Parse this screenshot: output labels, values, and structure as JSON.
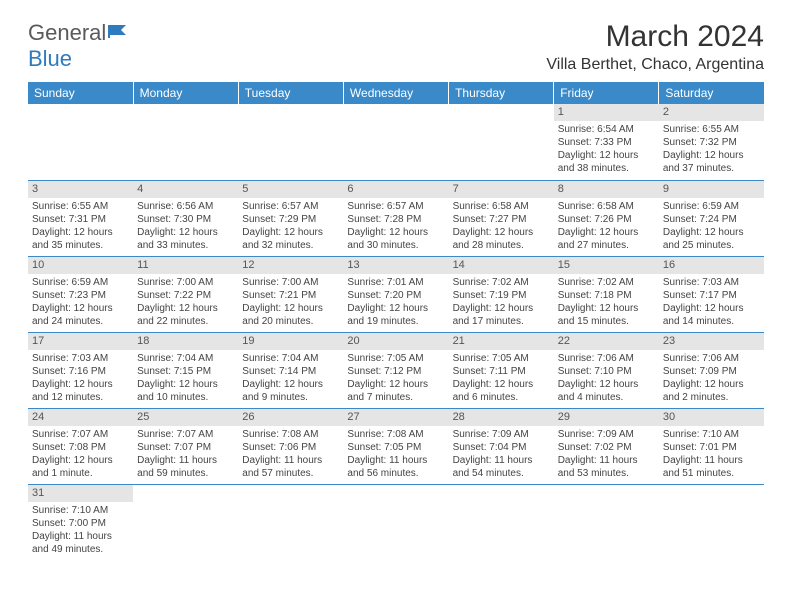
{
  "logo": {
    "text1": "General",
    "text2": "Blue",
    "mark_color": "#2f7bbf"
  },
  "header": {
    "month_title": "March 2024",
    "location": "Villa Berthet, Chaco, Argentina"
  },
  "colors": {
    "header_bg": "#3a89c9",
    "header_fg": "#ffffff",
    "daynum_bg": "#e5e5e5",
    "rule": "#3a89c9",
    "text": "#333333",
    "muted": "#555555"
  },
  "weekdays": [
    "Sunday",
    "Monday",
    "Tuesday",
    "Wednesday",
    "Thursday",
    "Friday",
    "Saturday"
  ],
  "weeks": [
    [
      null,
      null,
      null,
      null,
      null,
      {
        "n": "1",
        "sr": "6:54 AM",
        "ss": "7:33 PM",
        "dl": "12 hours and 38 minutes."
      },
      {
        "n": "2",
        "sr": "6:55 AM",
        "ss": "7:32 PM",
        "dl": "12 hours and 37 minutes."
      }
    ],
    [
      {
        "n": "3",
        "sr": "6:55 AM",
        "ss": "7:31 PM",
        "dl": "12 hours and 35 minutes."
      },
      {
        "n": "4",
        "sr": "6:56 AM",
        "ss": "7:30 PM",
        "dl": "12 hours and 33 minutes."
      },
      {
        "n": "5",
        "sr": "6:57 AM",
        "ss": "7:29 PM",
        "dl": "12 hours and 32 minutes."
      },
      {
        "n": "6",
        "sr": "6:57 AM",
        "ss": "7:28 PM",
        "dl": "12 hours and 30 minutes."
      },
      {
        "n": "7",
        "sr": "6:58 AM",
        "ss": "7:27 PM",
        "dl": "12 hours and 28 minutes."
      },
      {
        "n": "8",
        "sr": "6:58 AM",
        "ss": "7:26 PM",
        "dl": "12 hours and 27 minutes."
      },
      {
        "n": "9",
        "sr": "6:59 AM",
        "ss": "7:24 PM",
        "dl": "12 hours and 25 minutes."
      }
    ],
    [
      {
        "n": "10",
        "sr": "6:59 AM",
        "ss": "7:23 PM",
        "dl": "12 hours and 24 minutes."
      },
      {
        "n": "11",
        "sr": "7:00 AM",
        "ss": "7:22 PM",
        "dl": "12 hours and 22 minutes."
      },
      {
        "n": "12",
        "sr": "7:00 AM",
        "ss": "7:21 PM",
        "dl": "12 hours and 20 minutes."
      },
      {
        "n": "13",
        "sr": "7:01 AM",
        "ss": "7:20 PM",
        "dl": "12 hours and 19 minutes."
      },
      {
        "n": "14",
        "sr": "7:02 AM",
        "ss": "7:19 PM",
        "dl": "12 hours and 17 minutes."
      },
      {
        "n": "15",
        "sr": "7:02 AM",
        "ss": "7:18 PM",
        "dl": "12 hours and 15 minutes."
      },
      {
        "n": "16",
        "sr": "7:03 AM",
        "ss": "7:17 PM",
        "dl": "12 hours and 14 minutes."
      }
    ],
    [
      {
        "n": "17",
        "sr": "7:03 AM",
        "ss": "7:16 PM",
        "dl": "12 hours and 12 minutes."
      },
      {
        "n": "18",
        "sr": "7:04 AM",
        "ss": "7:15 PM",
        "dl": "12 hours and 10 minutes."
      },
      {
        "n": "19",
        "sr": "7:04 AM",
        "ss": "7:14 PM",
        "dl": "12 hours and 9 minutes."
      },
      {
        "n": "20",
        "sr": "7:05 AM",
        "ss": "7:12 PM",
        "dl": "12 hours and 7 minutes."
      },
      {
        "n": "21",
        "sr": "7:05 AM",
        "ss": "7:11 PM",
        "dl": "12 hours and 6 minutes."
      },
      {
        "n": "22",
        "sr": "7:06 AM",
        "ss": "7:10 PM",
        "dl": "12 hours and 4 minutes."
      },
      {
        "n": "23",
        "sr": "7:06 AM",
        "ss": "7:09 PM",
        "dl": "12 hours and 2 minutes."
      }
    ],
    [
      {
        "n": "24",
        "sr": "7:07 AM",
        "ss": "7:08 PM",
        "dl": "12 hours and 1 minute."
      },
      {
        "n": "25",
        "sr": "7:07 AM",
        "ss": "7:07 PM",
        "dl": "11 hours and 59 minutes."
      },
      {
        "n": "26",
        "sr": "7:08 AM",
        "ss": "7:06 PM",
        "dl": "11 hours and 57 minutes."
      },
      {
        "n": "27",
        "sr": "7:08 AM",
        "ss": "7:05 PM",
        "dl": "11 hours and 56 minutes."
      },
      {
        "n": "28",
        "sr": "7:09 AM",
        "ss": "7:04 PM",
        "dl": "11 hours and 54 minutes."
      },
      {
        "n": "29",
        "sr": "7:09 AM",
        "ss": "7:02 PM",
        "dl": "11 hours and 53 minutes."
      },
      {
        "n": "30",
        "sr": "7:10 AM",
        "ss": "7:01 PM",
        "dl": "11 hours and 51 minutes."
      }
    ],
    [
      {
        "n": "31",
        "sr": "7:10 AM",
        "ss": "7:00 PM",
        "dl": "11 hours and 49 minutes."
      },
      null,
      null,
      null,
      null,
      null,
      null
    ]
  ],
  "labels": {
    "sunrise": "Sunrise:",
    "sunset": "Sunset:",
    "daylight": "Daylight:"
  }
}
